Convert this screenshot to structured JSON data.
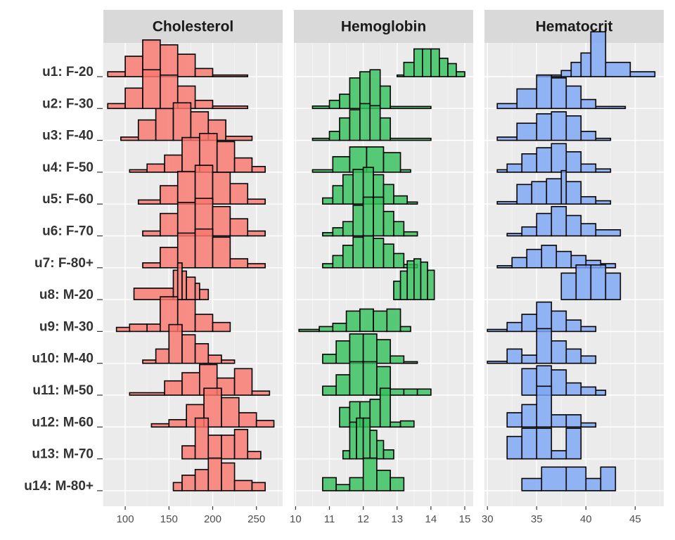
{
  "chart_data": {
    "type": "ridgeline-histogram",
    "title": "",
    "grid": true,
    "rows": [
      "u1: F-20",
      "u2: F-30",
      "u3: F-40",
      "u4: F-50",
      "u5: F-60",
      "u6: F-70",
      "u7: F-80+",
      "u8: M-20",
      "u9: M-30",
      "u10: M-40",
      "u11: M-50",
      "u12: M-60",
      "u13: M-70",
      "u14: M-80+"
    ],
    "panels": [
      {
        "name": "Cholesterol",
        "color": "#f8766d",
        "xlim": [
          75,
          280
        ],
        "ticks": [
          100,
          150,
          200,
          250
        ],
        "tick_labels": [
          "100",
          "150",
          "200",
          "250"
        ],
        "histograms": [
          {
            "edges": [
              80,
              100,
              120,
              140,
              160,
              180,
              200,
              240
            ],
            "heights": [
              0.12,
              0.5,
              0.9,
              0.78,
              0.55,
              0.2,
              0.04
            ]
          },
          {
            "edges": [
              80,
              100,
              120,
              140,
              160,
              180,
              200,
              240
            ],
            "heights": [
              0.12,
              0.5,
              0.95,
              0.82,
              0.55,
              0.2,
              0.06
            ]
          },
          {
            "edges": [
              95,
              115,
              135,
              155,
              175,
              195,
              215,
              245
            ],
            "heights": [
              0.08,
              0.5,
              0.78,
              0.92,
              0.7,
              0.5,
              0.1
            ]
          },
          {
            "edges": [
              105,
              125,
              145,
              165,
              185,
              205,
              225,
              245,
              260
            ],
            "heights": [
              0.06,
              0.2,
              0.42,
              0.85,
              0.95,
              0.75,
              0.35,
              0.14
            ]
          },
          {
            "edges": [
              115,
              140,
              160,
              180,
              200,
              220,
              240,
              260
            ],
            "heights": [
              0.1,
              0.45,
              0.8,
              0.95,
              0.78,
              0.5,
              0.12
            ]
          },
          {
            "edges": [
              120,
              140,
              160,
              180,
              200,
              220,
              240,
              260
            ],
            "heights": [
              0.12,
              0.55,
              0.82,
              0.92,
              0.72,
              0.42,
              0.12
            ]
          },
          {
            "edges": [
              120,
              140,
              160,
              180,
              200,
              220,
              240,
              260
            ],
            "heights": [
              0.12,
              0.5,
              0.85,
              0.95,
              0.75,
              0.22,
              0.1
            ]
          },
          {
            "edges": [
              110,
              155,
              160,
              165,
              170,
              180,
              185,
              195
            ],
            "heights": [
              0.28,
              0.72,
              0.9,
              0.7,
              0.55,
              0.4,
              0.25
            ]
          },
          {
            "edges": [
              90,
              105,
              125,
              140,
              160,
              180,
              200,
              220
            ],
            "heights": [
              0.1,
              0.18,
              0.18,
              0.85,
              0.78,
              0.42,
              0.22
            ]
          },
          {
            "edges": [
              120,
              135,
              150,
              165,
              180,
              195,
              210,
              225
            ],
            "heights": [
              0.08,
              0.35,
              0.95,
              0.7,
              0.48,
              0.2,
              0.08
            ]
          },
          {
            "edges": [
              105,
              145,
              165,
              185,
              205,
              225,
              245,
              265
            ],
            "heights": [
              0.06,
              0.35,
              0.55,
              0.75,
              0.42,
              0.65,
              0.1
            ]
          },
          {
            "edges": [
              130,
              150,
              170,
              190,
              210,
              230,
              250,
              270
            ],
            "heights": [
              0.08,
              0.18,
              0.55,
              0.95,
              0.72,
              0.35,
              0.16
            ]
          },
          {
            "edges": [
              165,
              180,
              195,
              210,
              225,
              240,
              255
            ],
            "heights": [
              0.32,
              1.0,
              0.58,
              0.58,
              0.72,
              0.18
            ]
          },
          {
            "edges": [
              155,
              165,
              180,
              195,
              210,
              225,
              245,
              260
            ],
            "heights": [
              0.2,
              0.38,
              0.52,
              0.8,
              0.68,
              0.25,
              0.2
            ]
          }
        ]
      },
      {
        "name": "Hemoglobin",
        "color": "#33c15a",
        "xlim": [
          9.95,
          15.25
        ],
        "ticks": [
          10,
          11,
          12,
          13,
          14,
          15
        ],
        "tick_labels": [
          "10",
          "11",
          "12",
          "13",
          "14",
          "15"
        ],
        "histograms": [
          {
            "edges": [
              13.0,
              13.2,
              13.5,
              13.75,
              14.0,
              14.25,
              14.5,
              14.75,
              15.0
            ],
            "heights": [
              0.04,
              0.35,
              0.68,
              0.68,
              0.68,
              0.45,
              0.32,
              0.12
            ]
          },
          {
            "edges": [
              10.5,
              11.0,
              11.3,
              11.6,
              11.9,
              12.2,
              12.5,
              12.8,
              14.0
            ],
            "heights": [
              0.06,
              0.2,
              0.35,
              0.75,
              0.9,
              0.95,
              0.55,
              0.05
            ]
          },
          {
            "edges": [
              10.5,
              11.0,
              11.3,
              11.6,
              11.9,
              12.2,
              12.5,
              12.8,
              14.0
            ],
            "heights": [
              0.05,
              0.22,
              0.55,
              0.75,
              0.9,
              0.85,
              0.55,
              0.05
            ]
          },
          {
            "edges": [
              10.5,
              11.1,
              11.6,
              12.1,
              12.6,
              13.1,
              13.4
            ],
            "heights": [
              0.06,
              0.38,
              0.62,
              0.62,
              0.48,
              0.06
            ]
          },
          {
            "edges": [
              10.8,
              11.1,
              11.4,
              11.7,
              12.0,
              12.3,
              12.6,
              12.9,
              13.3,
              13.6
            ],
            "heights": [
              0.15,
              0.45,
              0.72,
              0.85,
              0.9,
              0.72,
              0.48,
              0.2,
              0.05
            ]
          },
          {
            "edges": [
              10.8,
              11.1,
              11.4,
              11.7,
              12.0,
              12.3,
              12.6,
              12.9,
              13.2,
              13.6
            ],
            "heights": [
              0.08,
              0.2,
              0.35,
              0.75,
              0.95,
              0.95,
              0.6,
              0.35,
              0.1
            ]
          },
          {
            "edges": [
              10.8,
              11.1,
              11.4,
              11.7,
              12.0,
              12.3,
              12.6,
              12.9,
              13.2,
              13.6
            ],
            "heights": [
              0.1,
              0.3,
              0.55,
              0.75,
              0.78,
              0.72,
              0.58,
              0.35,
              0.08
            ]
          },
          {
            "edges": [
              12.9,
              13.1,
              13.3,
              13.5,
              13.7,
              13.9,
              14.1
            ],
            "heights": [
              0.45,
              0.7,
              0.95,
              1.0,
              0.92,
              0.72
            ]
          },
          {
            "edges": [
              10.1,
              10.7,
              11.1,
              11.5,
              11.9,
              12.3,
              12.7,
              13.1,
              13.4
            ],
            "heights": [
              0.05,
              0.12,
              0.2,
              0.5,
              0.55,
              0.5,
              0.55,
              0.12
            ]
          },
          {
            "edges": [
              10.8,
              11.2,
              11.6,
              12.0,
              12.4,
              12.8,
              13.2,
              13.6
            ],
            "heights": [
              0.22,
              0.55,
              0.72,
              0.72,
              0.58,
              0.18,
              0.04
            ]
          },
          {
            "edges": [
              10.8,
              11.2,
              11.6,
              12.0,
              12.4,
              12.8,
              13.2,
              13.6,
              14.0
            ],
            "heights": [
              0.22,
              0.5,
              0.82,
              0.82,
              0.7,
              0.15,
              0.15,
              0.15
            ]
          },
          {
            "edges": [
              11.3,
              11.6,
              11.9,
              12.2,
              12.5,
              12.8,
              13.1,
              13.5
            ],
            "heights": [
              0.48,
              0.62,
              0.62,
              0.68,
              0.95,
              0.12,
              0.15
            ]
          },
          {
            "edges": [
              11.4,
              11.6,
              11.8,
              12.0,
              12.2,
              12.4,
              12.6,
              12.9
            ],
            "heights": [
              0.2,
              0.9,
              1.0,
              1.0,
              0.7,
              0.45,
              0.22
            ]
          },
          {
            "edges": [
              10.8,
              11.2,
              11.6,
              12.0,
              12.4,
              12.8,
              13.2
            ],
            "heights": [
              0.32,
              0.15,
              0.32,
              0.8,
              0.5,
              0.32
            ]
          }
        ]
      },
      {
        "name": "Hematocrit",
        "color": "#7ba6f5",
        "xlim": [
          29.7,
          47.9
        ],
        "ticks": [
          30,
          35,
          40,
          45
        ],
        "tick_labels": [
          "30",
          "35",
          "40",
          "45"
        ],
        "histograms": [
          {
            "edges": [
              35,
              37.5,
              38.5,
              39.5,
              40.5,
              42,
              44.5,
              47
            ],
            "heights": [
              0.04,
              0.15,
              0.35,
              0.58,
              1.1,
              0.35,
              0.12
            ]
          },
          {
            "edges": [
              31,
              33,
              35,
              36.5,
              38,
              39.5,
              41,
              44
            ],
            "heights": [
              0.12,
              0.48,
              0.82,
              0.75,
              0.55,
              0.22,
              0.05
            ]
          },
          {
            "edges": [
              31,
              33,
              35,
              36.5,
              38,
              39.5,
              41,
              42.5
            ],
            "heights": [
              0.08,
              0.42,
              0.65,
              0.7,
              0.6,
              0.22,
              0.05
            ]
          },
          {
            "edges": [
              31,
              32,
              33.5,
              35,
              36.5,
              38,
              39.5,
              41,
              42.5
            ],
            "heights": [
              0.06,
              0.2,
              0.45,
              0.6,
              0.7,
              0.5,
              0.2,
              0.08
            ]
          },
          {
            "edges": [
              31,
              33,
              34.5,
              36,
              37.5,
              38,
              39.5,
              41,
              42.5
            ],
            "heights": [
              0.06,
              0.48,
              0.55,
              0.62,
              0.82,
              0.55,
              0.18,
              0.08
            ]
          },
          {
            "edges": [
              32,
              33.5,
              35,
              36.5,
              38,
              39.5,
              41,
              43.5
            ],
            "heights": [
              0.06,
              0.22,
              0.55,
              0.72,
              0.5,
              0.3,
              0.15
            ]
          },
          {
            "edges": [
              31,
              32.5,
              34,
              35.5,
              37,
              38.5,
              40,
              41.5,
              43
            ],
            "heights": [
              0.05,
              0.25,
              0.45,
              0.55,
              0.4,
              0.3,
              0.18,
              0.1
            ]
          },
          {
            "edges": [
              37.5,
              39,
              40.5,
              42,
              43.5
            ],
            "heights": [
              0.65,
              0.85,
              0.85,
              0.65
            ]
          },
          {
            "edges": [
              30,
              32,
              33.5,
              35,
              36.5,
              38,
              39.5,
              41
            ],
            "heights": [
              0.05,
              0.22,
              0.42,
              0.72,
              0.5,
              0.28,
              0.12
            ]
          },
          {
            "edges": [
              30,
              32,
              33.5,
              35,
              36.5,
              38,
              39.5,
              41
            ],
            "heights": [
              0.05,
              0.35,
              0.2,
              0.85,
              0.55,
              0.35,
              0.18
            ]
          },
          {
            "edges": [
              33.5,
              35,
              36.5,
              38,
              39.5,
              41,
              42
            ],
            "heights": [
              0.65,
              0.72,
              0.62,
              0.3,
              0.2,
              0.12
            ]
          },
          {
            "edges": [
              32,
              33.5,
              35,
              36.5,
              38,
              39.5,
              41
            ],
            "heights": [
              0.35,
              0.55,
              1.0,
              0.3,
              0.3,
              0.1
            ]
          },
          {
            "edges": [
              32,
              33.5,
              35,
              36.5,
              38,
              39.5
            ],
            "heights": [
              0.55,
              0.75,
              0.75,
              0.2,
              0.75
            ]
          },
          {
            "edges": [
              33.5,
              35.5,
              38,
              40,
              41.5,
              43
            ],
            "heights": [
              0.3,
              0.58,
              0.58,
              0.3,
              0.58
            ]
          }
        ]
      }
    ]
  }
}
